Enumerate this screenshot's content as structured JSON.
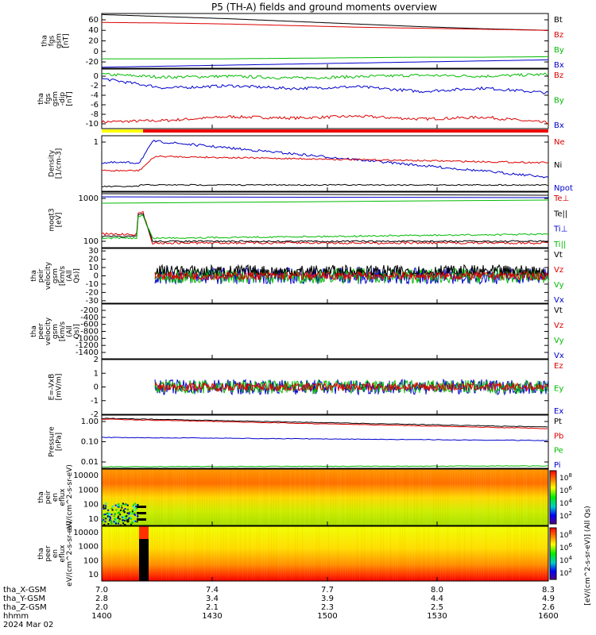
{
  "title": "P5 (TH-A) fields and ground moments overview",
  "chart_data": [
    {
      "type": "line",
      "ylabel": "tha fgs gsm [nT]",
      "yticks": [
        60,
        40,
        20,
        0,
        -20
      ],
      "ylim": [
        -32,
        72
      ],
      "series": [
        {
          "name": "Bt",
          "color": "#000000",
          "values": [
            70,
            66,
            62,
            57,
            52,
            47,
            43,
            40
          ]
        },
        {
          "name": "Bz",
          "color": "#dd0000",
          "values": [
            55,
            54,
            52,
            49,
            46,
            44,
            42,
            40
          ]
        },
        {
          "name": "By",
          "color": "#00bb00",
          "values": [
            -14,
            -14,
            -14,
            -13,
            -12,
            -11,
            -11,
            -10
          ]
        },
        {
          "name": "Bx",
          "color": "#0000cc",
          "values": [
            -30,
            -28,
            -26,
            -24,
            -22,
            -20,
            -18,
            -16
          ]
        }
      ]
    },
    {
      "type": "line",
      "ylabel": "tha fgs gsm -dip [nT]",
      "yticks": [
        0,
        -2,
        -4,
        -6,
        -8,
        -10
      ],
      "ylim": [
        -11,
        1.5
      ],
      "series": [
        {
          "name": "Bz",
          "color": "#dd0000",
          "values": [
            -9.6,
            -9.3,
            -8.5,
            -8.8,
            -8.4,
            -9.0,
            -8.6,
            -9.8
          ]
        },
        {
          "name": "By",
          "color": "#00bb00",
          "values": [
            0.4,
            -0.2,
            0.0,
            -0.4,
            -0.1,
            0.2,
            0.0,
            0.4
          ]
        },
        {
          "name": "Bx",
          "color": "#0000cc",
          "values": [
            -0.5,
            -2.5,
            -2.0,
            -2.6,
            -2.2,
            -3.2,
            -2.5,
            -3.5
          ]
        }
      ]
    },
    {
      "type": "line",
      "ylabel": "Density [1/cm-3]",
      "yticks": [
        "1"
      ],
      "series": [
        {
          "name": "Ne",
          "color": "#dd0000",
          "values": []
        },
        {
          "name": "Ni",
          "color": "#000000",
          "values": []
        },
        {
          "name": "Npot",
          "color": "#0000cc",
          "values": []
        }
      ]
    },
    {
      "type": "line",
      "ylabel": "moqt3 [eV]",
      "yticks": [
        "1000",
        "100"
      ],
      "series": [
        {
          "name": "Te⊥",
          "color": "#dd0000",
          "values": []
        },
        {
          "name": "Te||",
          "color": "#000000",
          "values": []
        },
        {
          "name": "Ti⊥",
          "color": "#0000cc",
          "values": []
        },
        {
          "name": "Ti||",
          "color": "#00bb00",
          "values": []
        }
      ]
    },
    {
      "type": "line",
      "ylabel": "tha peir velocity gsm [km/s (All Qs)]",
      "yticks": [
        30,
        20,
        10,
        0,
        -10,
        -20,
        -30
      ],
      "ylim": [
        -33,
        33
      ],
      "series": [
        {
          "name": "Vt",
          "color": "#000000"
        },
        {
          "name": "Vz",
          "color": "#dd0000"
        },
        {
          "name": "Vy",
          "color": "#00bb00"
        },
        {
          "name": "Vx",
          "color": "#0000cc"
        }
      ]
    },
    {
      "type": "line",
      "ylabel": "tha peer velocity gsm [km/s (All Qs)]",
      "yticks": [
        -200,
        -400,
        -600,
        -800,
        -1000,
        -1200,
        -1400
      ],
      "series": [
        {
          "name": "Vt",
          "color": "#000000"
        },
        {
          "name": "Vz",
          "color": "#dd0000"
        },
        {
          "name": "Vy",
          "color": "#00bb00"
        },
        {
          "name": "Vx",
          "color": "#0000cc"
        }
      ]
    },
    {
      "type": "line",
      "ylabel": "E=-VxB [mV/m]",
      "yticks": [
        2,
        1,
        0,
        -1,
        -2
      ],
      "ylim": [
        -2,
        2
      ],
      "series": [
        {
          "name": "Ez",
          "color": "#dd0000"
        },
        {
          "name": "Ey",
          "color": "#00bb00"
        },
        {
          "name": "Ex",
          "color": "#0000cc"
        }
      ]
    },
    {
      "type": "line",
      "ylabel": "Pressure [nPa]",
      "yticks": [
        "1.00",
        "0.10",
        "0.01"
      ],
      "series": [
        {
          "name": "Pt",
          "color": "#000000",
          "values": [
            1.15,
            1.1,
            1.05,
            0.98,
            0.9,
            0.82,
            0.75,
            0.7
          ]
        },
        {
          "name": "Pb",
          "color": "#dd0000",
          "values": [
            1.1,
            1.05,
            1.0,
            0.95,
            0.88,
            0.8,
            0.73,
            0.68
          ]
        },
        {
          "name": "Pe",
          "color": "#00bb00",
          "values": []
        },
        {
          "name": "Pi",
          "color": "#0000cc",
          "values": [
            0.2,
            0.18,
            0.17,
            0.16,
            0.16,
            0.15,
            0.15,
            0.15
          ]
        }
      ]
    },
    {
      "type": "heatmap",
      "ylabel": "tha peir en eflux eV/(cm^2-s-sr-eV)",
      "yticks": [
        "10000",
        "1000",
        "100",
        "10"
      ],
      "colorbar_ticks": [
        "10^8",
        "10^6",
        "10^4",
        "10^2"
      ],
      "colorbar_label": "[eV/(cm^2-s-sr-eV)] (All Qs)"
    },
    {
      "type": "heatmap",
      "ylabel": "tha peer en eflux eV/(cm^2-s-sr-eV)",
      "yticks": [
        "10000",
        "1000",
        "100",
        "10"
      ],
      "colorbar_ticks": [
        "10^8",
        "10^6",
        "10^4",
        "10^2"
      ],
      "colorbar_label": "[eV/(cm^2-s-sr-eV)]"
    }
  ],
  "x_axis": {
    "rows": [
      {
        "label": "tha_X-GSM",
        "values": [
          "7.0",
          "7.4",
          "7.7",
          "8.0",
          "8.3"
        ]
      },
      {
        "label": "tha_Y-GSM",
        "values": [
          "2.8",
          "3.4",
          "3.9",
          "4.4",
          "4.9"
        ]
      },
      {
        "label": "tha_Z-GSM",
        "values": [
          "2.0",
          "2.1",
          "2.3",
          "2.5",
          "2.6"
        ]
      },
      {
        "label": "hhmm",
        "values": [
          "1400",
          "1430",
          "1500",
          "1530",
          "1600"
        ]
      }
    ],
    "date": "2024 Mar 02"
  }
}
